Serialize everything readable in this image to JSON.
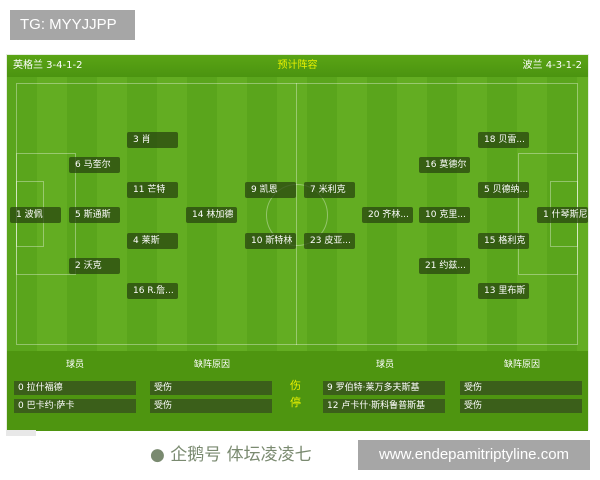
{
  "tg_label": "TG: MYYJJPP",
  "header": {
    "home": "英格兰 3-4-1-2",
    "title": "预计阵容",
    "away": "波兰 4-3-1-2"
  },
  "home_players": [
    "3 肖",
    "6 马奎尔",
    "11 芒特",
    "1 波佩",
    "5 斯通斯",
    "14 林加德",
    "9 凯恩",
    "4 莱斯",
    "10 斯特林",
    "2 沃克",
    "16 R.詹..."
  ],
  "away_players": [
    "18 贝雷...",
    "16 莫德尔",
    "7 米利克",
    "5 贝德纳...",
    "20 齐林...",
    "10 克里...",
    "1 什琴斯尼",
    "23 皮亚...",
    "15 格利克",
    "21 约兹...",
    "13 里布斯"
  ],
  "injuries": {
    "col_player": "球员",
    "col_reason": "缺阵原因",
    "label": "伤停",
    "home": [
      {
        "player": "0 拉什福德",
        "reason": "受伤"
      },
      {
        "player": "0 巴卡约·萨卡",
        "reason": "受伤"
      }
    ],
    "away": [
      {
        "player": "9 罗伯特·莱万多夫斯基",
        "reason": "受伤"
      },
      {
        "player": "12 卢卡什·斯科鲁普斯基",
        "reason": "受伤"
      }
    ]
  },
  "watermark": "企鹅号 体坛凌凌七",
  "url": "www.endepamitriptyline.com"
}
